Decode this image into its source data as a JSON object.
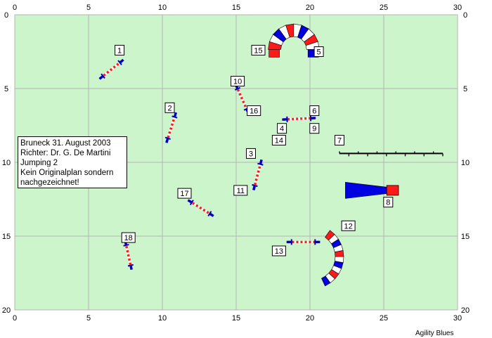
{
  "grid": {
    "x_max": 30,
    "y_max": 20,
    "tick_step": 5,
    "field_color": "#ccf5cc",
    "grid_color": "#b4b4b4"
  },
  "info": {
    "lines": [
      "Bruneck 31. August 2003",
      "Richter: Dr. G. De Martini",
      "Jumping 2",
      "Kein Originalplan sondern",
      "nachgezeichnet!"
    ]
  },
  "credit": "Agility Blues",
  "colors": {
    "red": "#ff1a1a",
    "blue": "#0000e0",
    "white": "#ffffff",
    "pole_stand": "#0000c0"
  },
  "jumps": [
    {
      "label": "1",
      "x1": 5.8,
      "y1": 4.3,
      "x2": 7.3,
      "y2": 3.1
    },
    {
      "label": "2",
      "x1": 10.3,
      "y1": 8.6,
      "x2": 10.9,
      "y2": 6.7
    },
    {
      "label": "3",
      "x1": 16.2,
      "y1": 11.8,
      "x2": 16.7,
      "y2": 9.9
    },
    {
      "label": "4",
      "x1": 18.2,
      "y1": 7.1,
      "x2": 20.3,
      "y2": 7.0
    },
    {
      "label": "10",
      "x1": 15.0,
      "y1": 4.8,
      "x2": 15.8,
      "y2": 6.6
    },
    {
      "label": "11",
      "x1": 16.2,
      "y1": 11.8,
      "x2": 16.7,
      "y2": 9.9
    },
    {
      "label": "13",
      "x1": 18.5,
      "y1": 15.4,
      "x2": 20.6,
      "y2": 15.4
    },
    {
      "label": "17",
      "x1": 11.8,
      "y1": 12.6,
      "x2": 13.4,
      "y2": 13.6
    },
    {
      "label": "18",
      "x1": 7.5,
      "y1": 15.4,
      "x2": 7.9,
      "y2": 17.2
    }
  ],
  "labels": [
    {
      "text": "1",
      "x": 7.1,
      "y": 2.4
    },
    {
      "text": "2",
      "x": 10.5,
      "y": 6.3
    },
    {
      "text": "3",
      "x": 16.0,
      "y": 9.4
    },
    {
      "text": "4",
      "x": 18.1,
      "y": 7.7
    },
    {
      "text": "5",
      "x": 20.6,
      "y": 2.5
    },
    {
      "text": "6",
      "x": 20.3,
      "y": 6.5
    },
    {
      "text": "7",
      "x": 22.0,
      "y": 8.5
    },
    {
      "text": "8",
      "x": 25.3,
      "y": 12.7
    },
    {
      "text": "9",
      "x": 20.3,
      "y": 7.7
    },
    {
      "text": "10",
      "x": 15.1,
      "y": 4.5
    },
    {
      "text": "11",
      "x": 15.3,
      "y": 11.9
    },
    {
      "text": "12",
      "x": 22.6,
      "y": 14.3
    },
    {
      "text": "13",
      "x": 17.9,
      "y": 16.0
    },
    {
      "text": "14",
      "x": 17.9,
      "y": 8.5
    },
    {
      "text": "15",
      "x": 16.5,
      "y": 2.4
    },
    {
      "text": "16",
      "x": 16.2,
      "y": 6.5
    },
    {
      "text": "17",
      "x": 11.5,
      "y": 12.1
    },
    {
      "text": "18",
      "x": 7.7,
      "y": 15.1
    }
  ],
  "weave": {
    "x1": 22.0,
    "x2": 29.0,
    "y": 9.4,
    "poles": 12
  },
  "tunnel_top": {
    "cx": 18.9,
    "cy": 2.35,
    "r": 1.3,
    "theta_start": 180,
    "theta_end": 0
  },
  "tunnel_bottom": {
    "cx": 20.1,
    "cy": 16.4,
    "r": 1.9,
    "theta_start": -65,
    "theta_end": 55
  },
  "chute": {
    "x_wide": 22.4,
    "x_narrow": 25.2,
    "y": 11.9,
    "half_wide": 0.55,
    "half_narrow": 0.22,
    "x_end": 26.0
  }
}
